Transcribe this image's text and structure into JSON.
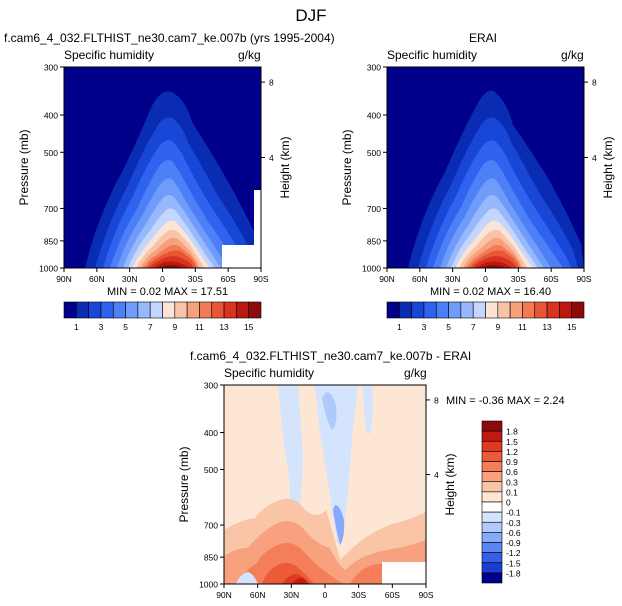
{
  "figure": {
    "title": "DJF"
  },
  "panels": [
    {
      "id": "model",
      "title": "f.cam6_4_032.FLTHIST_ne30.cam7_ke.007b (yrs 1995-2004)",
      "left_string": "Specific humidity",
      "right_string": "g/kg",
      "stats_text": "MIN =  0.02  MAX =  17.51"
    },
    {
      "id": "obs",
      "title": "ERAI",
      "left_string": "Specific humidity",
      "right_string": "g/kg",
      "stats_text": "MIN =  0.02  MAX =  16.40"
    },
    {
      "id": "diff",
      "title": "f.cam6_4_032.FLTHIST_ne30.cam7_ke.007b - ERAI",
      "left_string": "Specific humidity",
      "right_string": "g/kg",
      "stats_text": "MIN = -0.36  MAX =   2.24"
    }
  ],
  "axes": {
    "ylabel": "Pressure (mb)",
    "y2label": "Height (km)",
    "pressure_ticks": [
      "300",
      "400",
      "500",
      "700",
      "850",
      "1000"
    ],
    "height_ticks": [
      "8",
      "4"
    ],
    "lat_ticks": [
      "90N",
      "60N",
      "30N",
      "0",
      "30S",
      "60S",
      "90S"
    ]
  },
  "colorbars": {
    "full": {
      "labels": [
        "1",
        "3",
        "5",
        "7",
        "9",
        "11",
        "13",
        "15"
      ],
      "colors": [
        "#00008b",
        "#0a2cb3",
        "#1846d6",
        "#2f62ee",
        "#4d7ff7",
        "#6f9cfa",
        "#97b9fc",
        "#c4d6fd",
        "#fbe3d6",
        "#f8c3a7",
        "#f6a07c",
        "#f27a55",
        "#ea5535",
        "#d8331f",
        "#bc1810",
        "#8e0b0b"
      ]
    },
    "diff": {
      "labels": [
        "1.8",
        "1.5",
        "1.2",
        "0.9",
        "0.6",
        "0.3",
        "0.1",
        "0",
        "-0.1",
        "-0.3",
        "-0.6",
        "-0.9",
        "-1.2",
        "-1.5",
        "-1.8"
      ],
      "colors": [
        "#8e0b0b",
        "#c21912",
        "#dd3a20",
        "#ec5a38",
        "#f47e59",
        "#f8a17e",
        "#fac4a6",
        "#fde6d3",
        "#ffffff",
        "#d5e4fd",
        "#b0c9fb",
        "#86a9f8",
        "#5b86f2",
        "#3360e6",
        "#1a3fcf",
        "#00008b"
      ]
    }
  },
  "chart_data": [
    {
      "type": "heatmap",
      "title": "f.cam6_4_032.FLTHIST_ne30.cam7_ke.007b (yrs 1995-2004)",
      "variable": "Specific humidity",
      "units": "g/kg",
      "season": "DJF",
      "x_ticks": [
        "90N",
        "60N",
        "30N",
        "0",
        "30S",
        "60S",
        "90S"
      ],
      "y_ticks_pressure_mb": [
        300,
        400,
        500,
        700,
        850,
        1000
      ],
      "y2_ticks_height_km": [
        8,
        4
      ],
      "min": 0.02,
      "max": 17.51,
      "contour_levels": [
        1,
        3,
        5,
        7,
        9,
        11,
        13,
        15
      ]
    },
    {
      "type": "heatmap",
      "title": "ERAI",
      "variable": "Specific humidity",
      "units": "g/kg",
      "season": "DJF",
      "x_ticks": [
        "90N",
        "60N",
        "30N",
        "0",
        "30S",
        "60S",
        "90S"
      ],
      "y_ticks_pressure_mb": [
        300,
        400,
        500,
        700,
        850,
        1000
      ],
      "y2_ticks_height_km": [
        8,
        4
      ],
      "min": 0.02,
      "max": 16.4,
      "contour_levels": [
        1,
        3,
        5,
        7,
        9,
        11,
        13,
        15
      ]
    },
    {
      "type": "heatmap",
      "title": "f.cam6_4_032.FLTHIST_ne30.cam7_ke.007b - ERAI",
      "variable": "Specific humidity",
      "units": "g/kg",
      "x_ticks": [
        "90N",
        "60N",
        "30N",
        "0",
        "30S",
        "60S",
        "90S"
      ],
      "y_ticks_pressure_mb": [
        300,
        400,
        500,
        700,
        850,
        1000
      ],
      "y2_ticks_height_km": [
        8,
        4
      ],
      "min": -0.36,
      "max": 2.24,
      "contour_levels": [
        -1.8,
        -1.5,
        -1.2,
        -0.9,
        -0.6,
        -0.3,
        -0.1,
        0,
        0.1,
        0.3,
        0.6,
        0.9,
        1.2,
        1.5,
        1.8
      ]
    }
  ]
}
